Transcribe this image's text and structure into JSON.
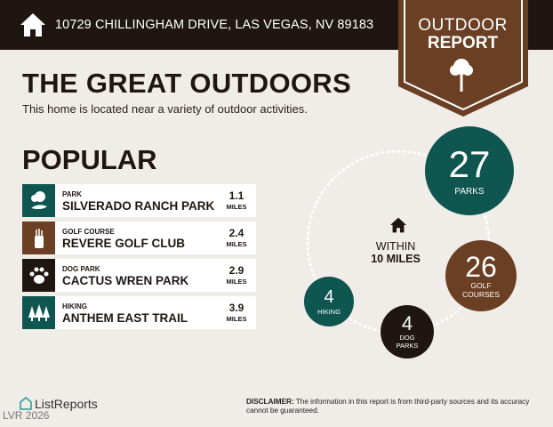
{
  "header": {
    "address": "10729 CHILLINGHAM DRIVE, LAS VEGAS, NV 89183",
    "icon": "home-icon"
  },
  "banner": {
    "line1": "OUTDOOR",
    "line2": "REPORT",
    "icon": "tree-icon"
  },
  "title": "THE GREAT OUTDOORS",
  "subtitle": "This home is located near a variety of outdoor activities.",
  "popular": {
    "heading": "POPULAR",
    "items": [
      {
        "category": "PARK",
        "name": "SILVERADO RANCH PARK",
        "distance": "1.1",
        "unit": "MILES",
        "icon": "park-icon",
        "color": "#0f5550"
      },
      {
        "category": "GOLF COURSE",
        "name": "REVERE GOLF CLUB",
        "distance": "2.4",
        "unit": "MILES",
        "icon": "golf-bag-icon",
        "color": "#6b3f23"
      },
      {
        "category": "DOG PARK",
        "name": "CACTUS WREN PARK",
        "distance": "2.9",
        "unit": "MILES",
        "icon": "paw-icon",
        "color": "#1f1612"
      },
      {
        "category": "HIKING",
        "name": "ANTHEM EAST TRAIL",
        "distance": "3.9",
        "unit": "MILES",
        "icon": "trees-icon",
        "color": "#0f5550"
      }
    ]
  },
  "radius": {
    "line1": "WITHIN",
    "line2": "10 MILES"
  },
  "counts": {
    "parks": {
      "value": "27",
      "label": "PARKS",
      "color": "#0f5550"
    },
    "golf": {
      "value": "26",
      "label1": "GOLF",
      "label2": "COURSES",
      "color": "#6b3f23"
    },
    "dog": {
      "value": "4",
      "label1": "DOG",
      "label2": "PARKS",
      "color": "#1f1612"
    },
    "hiking": {
      "value": "4",
      "label": "HIKING",
      "color": "#0f5550"
    }
  },
  "footer": {
    "logo": "ListReports",
    "watermark": "LVR 2026",
    "disclaimer_label": "DISCLAIMER:",
    "disclaimer": " The information in this report is from third-party sources and its accuracy cannot be guaranteed."
  }
}
